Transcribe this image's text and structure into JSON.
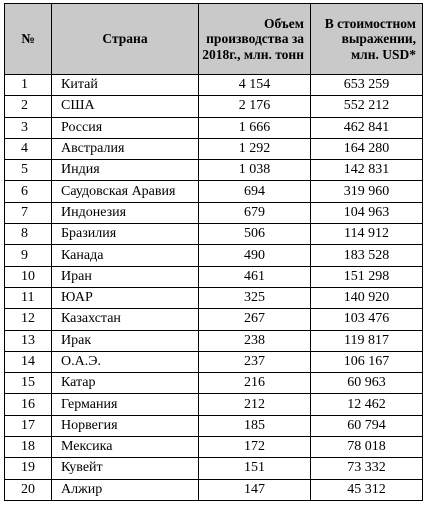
{
  "headers": {
    "num": "№",
    "country": "Страна",
    "volume": "Объем производства за 2018г., млн. тонн",
    "value": "В стоимостном выражении, млн. USD*"
  },
  "rows": [
    {
      "num": "1",
      "country": "Китай",
      "volume": "4 154",
      "value": "653 259"
    },
    {
      "num": "2",
      "country": "США",
      "volume": "2 176",
      "value": "552 212"
    },
    {
      "num": "3",
      "country": "Россия",
      "volume": "1 666",
      "value": "462 841"
    },
    {
      "num": "4",
      "country": "Австралия",
      "volume": "1 292",
      "value": "164 280"
    },
    {
      "num": "5",
      "country": "Индия",
      "volume": "1 038",
      "value": "142 831"
    },
    {
      "num": "6",
      "country": "Саудовская Аравия",
      "volume": "694",
      "value": "319 960"
    },
    {
      "num": "7",
      "country": "Индонезия",
      "volume": "679",
      "value": "104 963"
    },
    {
      "num": "8",
      "country": "Бразилия",
      "volume": "506",
      "value": "114 912"
    },
    {
      "num": "9",
      "country": "Канада",
      "volume": "490",
      "value": "183 528"
    },
    {
      "num": "10",
      "country": "Иран",
      "volume": "461",
      "value": "151 298"
    },
    {
      "num": "11",
      "country": "ЮАР",
      "volume": "325",
      "value": "140 920"
    },
    {
      "num": "12",
      "country": "Казахстан",
      "volume": "267",
      "value": "103 476"
    },
    {
      "num": "13",
      "country": "Ирак",
      "volume": "238",
      "value": "119 817"
    },
    {
      "num": "14",
      "country": "О.А.Э.",
      "volume": "237",
      "value": "106 167"
    },
    {
      "num": "15",
      "country": "Катар",
      "volume": "216",
      "value": "60 963"
    },
    {
      "num": "16",
      "country": "Германия",
      "volume": "212",
      "value": "12 462"
    },
    {
      "num": "17",
      "country": "Норвегия",
      "volume": "185",
      "value": "60 794"
    },
    {
      "num": "18",
      "country": "Мексика",
      "volume": "172",
      "value": "78 018"
    },
    {
      "num": "19",
      "country": "Кувейт",
      "volume": "151",
      "value": "73 332"
    },
    {
      "num": "20",
      "country": "Алжир",
      "volume": "147",
      "value": "45 312"
    }
  ],
  "colors": {
    "header_background": "#c9c9c9",
    "border": "#000000"
  }
}
